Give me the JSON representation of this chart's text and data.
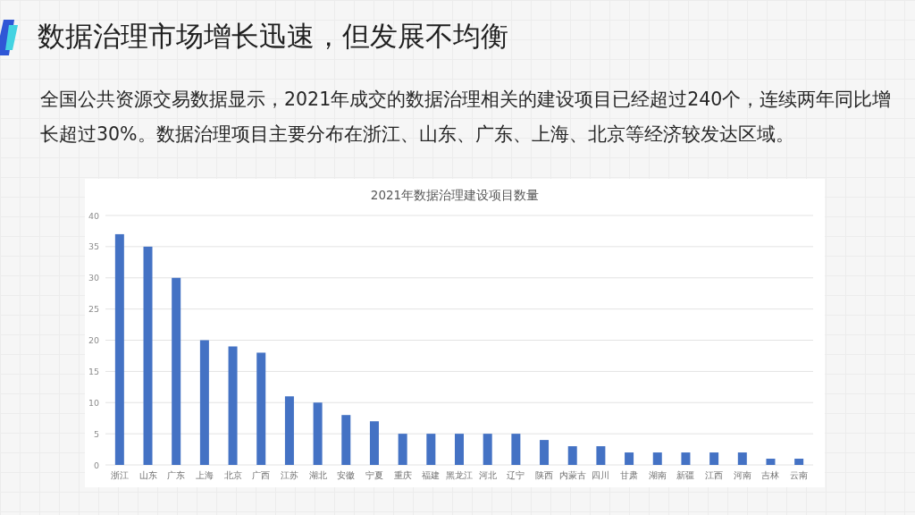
{
  "chart_data": {
    "type": "bar",
    "title": "数据治理市场增长迅速，但发展不均衡",
    "subtitle": "全国公共资源交易数据显示，2021年成交的数据治理相关的建设项目已经超过240个，连续两年同比增长超过30%。数据治理项目主要分布在浙江、山东、广东、上海、北京等经济较发达区域。",
    "annotations": [
      "2021年数据治理建设项目数量"
    ],
    "categories": [
      "浙江",
      "山东",
      "广东",
      "上海",
      "北京",
      "广西",
      "江苏",
      "湖北",
      "安徽",
      "宁夏",
      "重庆",
      "福建",
      "黑龙江",
      "河北",
      "辽宁",
      "陕西",
      "内蒙古",
      "四川",
      "甘肃",
      "湖南",
      "新疆",
      "江西",
      "河南",
      "吉林",
      "云南"
    ],
    "values": [
      37,
      35,
      30,
      20,
      19,
      18,
      11,
      10,
      8,
      7,
      5,
      5,
      5,
      5,
      5,
      4,
      3,
      3,
      2,
      2,
      2,
      2,
      2,
      1,
      1
    ],
    "color": "#4472c4",
    "ylim": [
      0,
      40
    ],
    "yticks": [
      0,
      5,
      10,
      15,
      20,
      25,
      30,
      35,
      40
    ],
    "grid": "y"
  }
}
